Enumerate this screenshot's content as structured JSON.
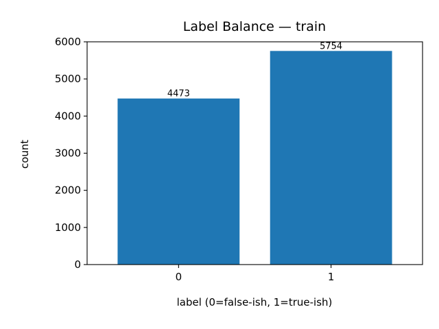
{
  "chart_data": {
    "type": "bar",
    "title": "Label Balance — train",
    "xlabel": "label (0=false-ish, 1=true-ish)",
    "ylabel": "count",
    "categories": [
      "0",
      "1"
    ],
    "values": [
      4473,
      5754
    ],
    "data_labels": [
      "4473",
      "5754"
    ],
    "ylim": [
      0,
      6000
    ],
    "yticks": [
      0,
      1000,
      2000,
      3000,
      4000,
      5000,
      6000
    ],
    "grid": false,
    "bar_color": "#1f77b4"
  }
}
